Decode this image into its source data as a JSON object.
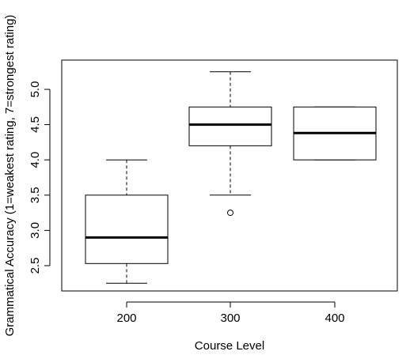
{
  "chart_data": {
    "type": "box",
    "xlabel": "Course Level",
    "ylabel": "Grammatical Accuracy (1=weakest rating, 7=strongest rating)",
    "categories": [
      "200",
      "300",
      "400"
    ],
    "ylim": [
      2.2,
      5.4
    ],
    "yticks": [
      "2.5",
      "3.0",
      "3.5",
      "4.0",
      "4.5",
      "5.0"
    ],
    "grid": false,
    "boxes": [
      {
        "category": "200",
        "whisker_low": 2.25,
        "q1": 2.53,
        "median": 2.9,
        "q3": 3.5,
        "whisker_high": 4.0,
        "outliers": []
      },
      {
        "category": "300",
        "whisker_low": 3.5,
        "q1": 4.2,
        "median": 4.5,
        "q3": 4.75,
        "whisker_high": 5.25,
        "outliers": [
          3.25
        ]
      },
      {
        "category": "400",
        "whisker_low": 4.0,
        "q1": 4.0,
        "median": 4.38,
        "q3": 4.75,
        "whisker_high": 4.75,
        "outliers": []
      }
    ]
  }
}
